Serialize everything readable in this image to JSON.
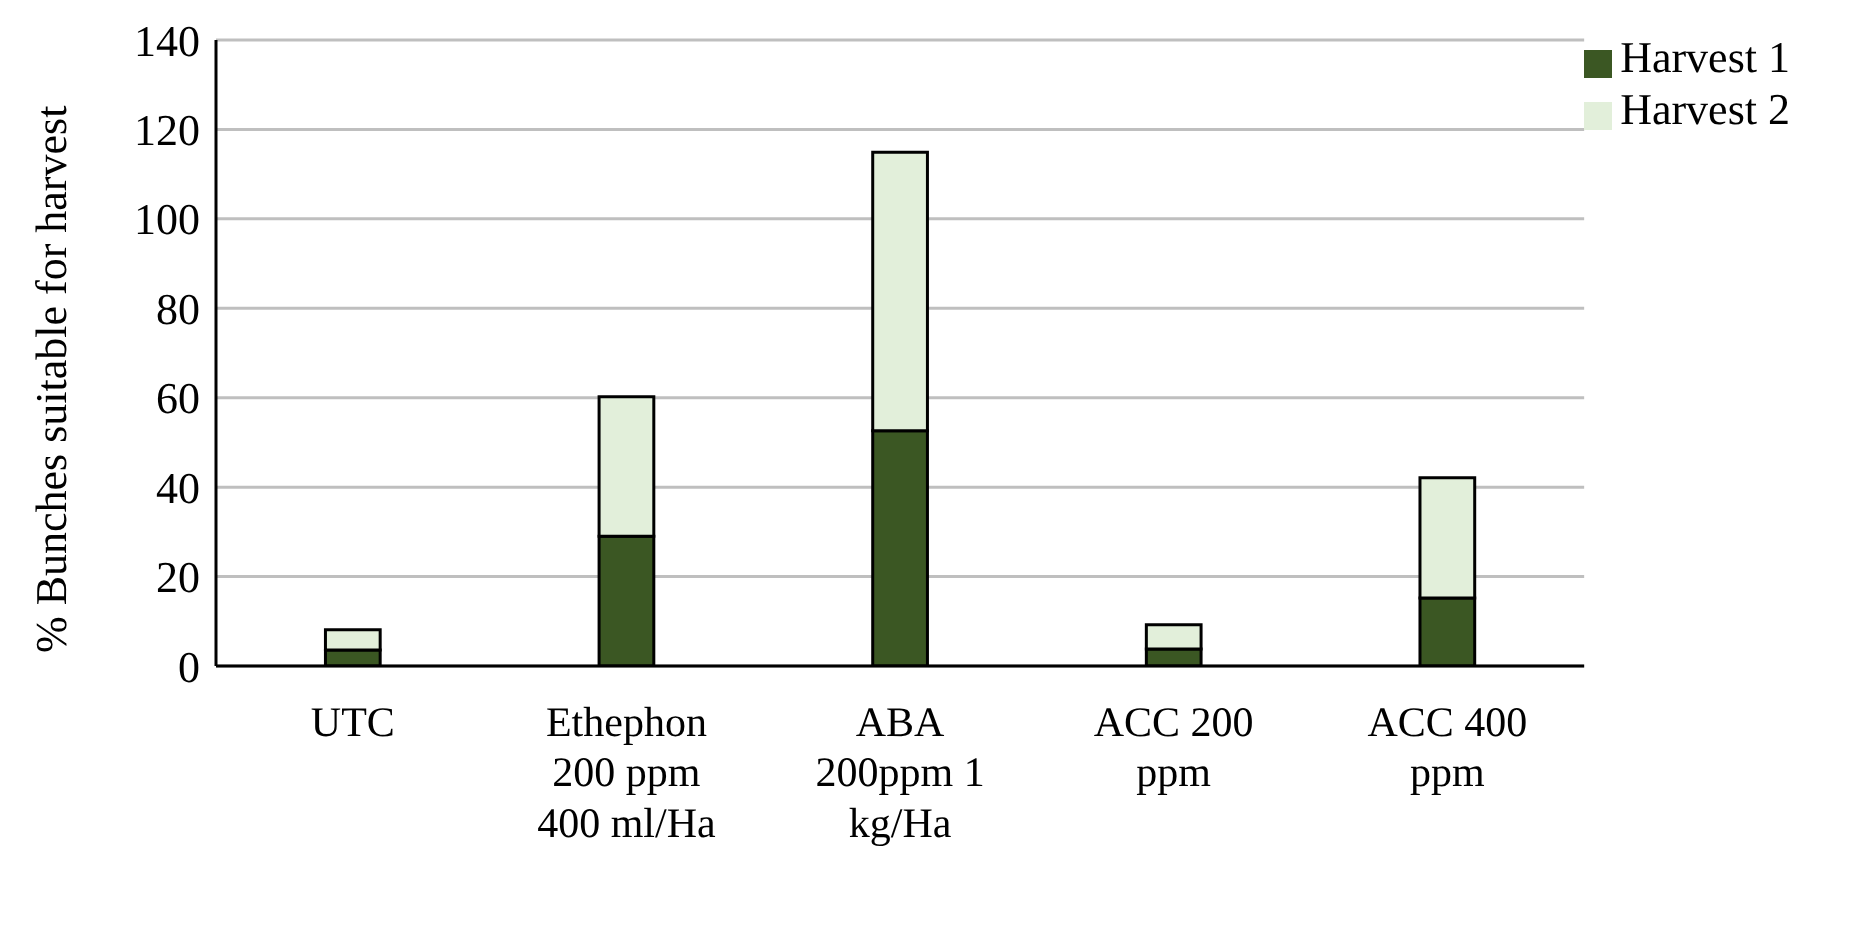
{
  "chart_data": {
    "type": "bar",
    "stacked": true,
    "ylabel": "% Bunches suitable for harvest",
    "categories": [
      "UTC",
      "Ethephon 200 ppm 400 ml/Ha",
      "ABA 200ppm 1 kg/Ha",
      "ACC 200 ppm",
      "ACC 400 ppm"
    ],
    "series": [
      {
        "name": "Harvest 1",
        "color": "#3b5723",
        "values": [
          3.6,
          29,
          52.6,
          3.8,
          15.2
        ]
      },
      {
        "name": "Harvest 2",
        "color": "#e2efda",
        "values": [
          4.5,
          31.2,
          62.3,
          5.4,
          26.9
        ]
      }
    ],
    "ylim": [
      0,
      140
    ],
    "yticks": [
      0,
      20,
      40,
      60,
      80,
      100,
      120,
      140
    ],
    "grid": "y",
    "legend": "top right"
  }
}
